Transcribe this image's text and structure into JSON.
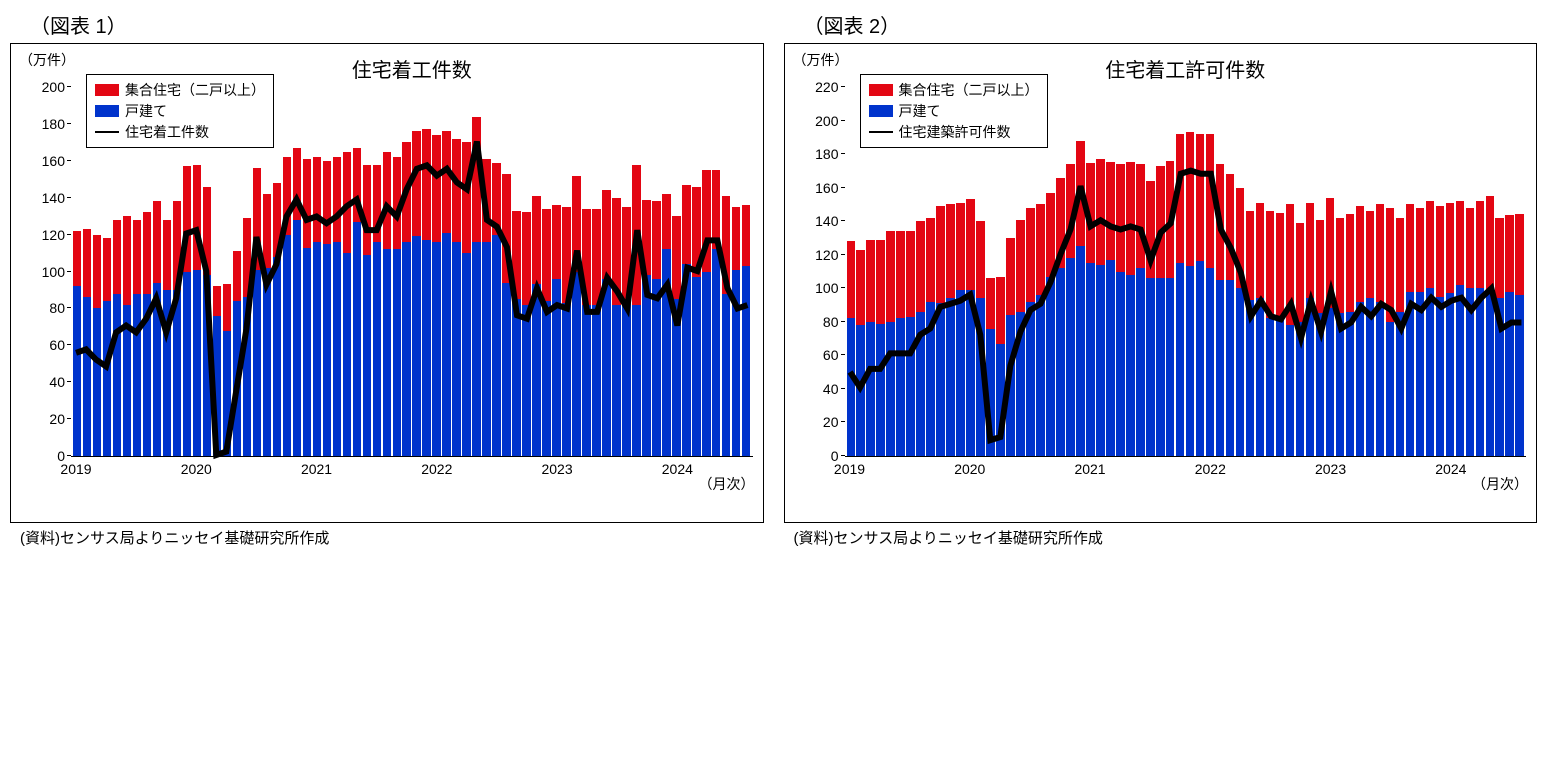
{
  "colors": {
    "multi": "#e30613",
    "single": "#0033cc",
    "line": "#000000",
    "bg": "#ffffff",
    "axis": "#000000"
  },
  "common": {
    "y_unit": "（万件）",
    "x_unit": "（月次）",
    "source": "(資料)センサス局よりニッセイ基礎研究所作成",
    "x_years": [
      "2019",
      "2020",
      "2021",
      "2022",
      "2023",
      "2024"
    ],
    "legend": {
      "multi": "集合住宅（二戸以上）",
      "single": "戸建て"
    },
    "bar_line_width": 2,
    "title_fontsize": 20,
    "label_fontsize": 14
  },
  "chart1": {
    "figure_label": "（図表 1）",
    "title": "住宅着工件数",
    "line_label": "住宅着工件数",
    "ylim": [
      0,
      200
    ],
    "ytick_step": 20,
    "single": [
      92,
      86,
      80,
      84,
      88,
      82,
      88,
      88,
      94,
      90,
      90,
      100,
      101,
      98,
      76,
      68,
      84,
      86,
      101,
      102,
      108,
      120,
      128,
      113,
      116,
      115,
      116,
      110,
      127,
      109,
      116,
      112,
      112,
      116,
      119,
      117,
      116,
      121,
      116,
      110,
      116,
      116,
      120,
      94,
      85,
      82,
      93,
      84,
      96,
      83,
      100,
      82,
      82,
      96,
      82,
      84,
      82,
      98,
      96,
      112,
      85,
      104,
      97,
      100,
      112,
      88,
      101,
      103
    ],
    "multi": [
      30,
      37,
      40,
      34,
      40,
      48,
      40,
      44,
      44,
      38,
      48,
      57,
      57,
      48,
      16,
      25,
      27,
      43,
      55,
      40,
      40,
      42,
      39,
      48,
      46,
      45,
      46,
      55,
      40,
      49,
      42,
      53,
      50,
      54,
      57,
      60,
      58,
      55,
      56,
      60,
      68,
      45,
      39,
      59,
      48,
      50,
      48,
      50,
      40,
      52,
      52,
      52,
      52,
      48,
      58,
      51,
      76,
      41,
      42,
      30,
      45,
      43,
      49,
      55,
      43,
      53,
      34,
      33
    ]
  },
  "chart2": {
    "figure_label": "（図表 2）",
    "title": "住宅着工許可件数",
    "line_label": "住宅建築許可件数",
    "ylim": [
      0,
      220
    ],
    "ytick_step": 20,
    "single": [
      82,
      78,
      80,
      79,
      80,
      82,
      83,
      86,
      92,
      91,
      94,
      99,
      99,
      94,
      76,
      67,
      84,
      86,
      92,
      96,
      107,
      112,
      118,
      125,
      115,
      114,
      117,
      110,
      108,
      112,
      106,
      106,
      106,
      115,
      113,
      116,
      112,
      105,
      105,
      100,
      93,
      94,
      82,
      83,
      78,
      80,
      94,
      85,
      88,
      85,
      86,
      92,
      94,
      92,
      80,
      86,
      98,
      98,
      100,
      95,
      97,
      102,
      100,
      100,
      97,
      94,
      98,
      96
    ],
    "multi": [
      46,
      45,
      49,
      50,
      54,
      52,
      51,
      54,
      50,
      58,
      56,
      52,
      54,
      46,
      30,
      40,
      46,
      55,
      56,
      54,
      50,
      54,
      56,
      63,
      60,
      63,
      58,
      64,
      67,
      62,
      58,
      67,
      70,
      77,
      80,
      76,
      80,
      69,
      63,
      60,
      53,
      57,
      64,
      62,
      72,
      59,
      57,
      56,
      66,
      57,
      58,
      57,
      52,
      58,
      68,
      56,
      52,
      50,
      52,
      54,
      54,
      50,
      48,
      52,
      58,
      48,
      46,
      48
    ]
  }
}
